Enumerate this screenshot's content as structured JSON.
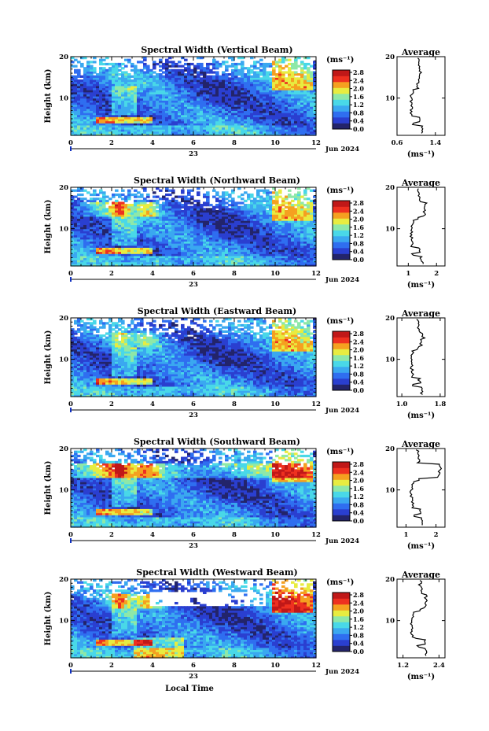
{
  "chart_data": [
    {
      "type": "heatmap",
      "title": "Spectral Width (Vertical Beam)",
      "ylabel": "Height (km)",
      "xticks": [
        "0",
        "2",
        "4",
        "6",
        "8",
        "10",
        "12"
      ],
      "yticks": [
        "10",
        "20"
      ],
      "ylim": [
        1,
        20
      ],
      "xlim": [
        0,
        12
      ],
      "date_day": "23",
      "date_label": "Jun 2024",
      "colorbar": {
        "unit": "(ms⁻¹)",
        "ticks": [
          "2.8",
          "2.4",
          "2.0",
          "1.6",
          "1.2",
          "0.8",
          "0.4",
          "0.0"
        ],
        "range": [
          0,
          2.8
        ]
      },
      "profile": {
        "title": "Average",
        "xticks": [
          "0.6",
          "1.4"
        ],
        "yticks": [
          "10",
          "20"
        ],
        "xunit": "(ms⁻¹)",
        "xlim": [
          0.6,
          1.6
        ]
      }
    },
    {
      "type": "heatmap",
      "title": "Spectral Width (Northward Beam)",
      "ylabel": "Height (km)",
      "xticks": [
        "0",
        "2",
        "4",
        "6",
        "8",
        "10",
        "12"
      ],
      "yticks": [
        "10",
        "20"
      ],
      "ylim": [
        1,
        20
      ],
      "xlim": [
        0,
        12
      ],
      "date_day": "23",
      "date_label": "Jun 2024",
      "colorbar": {
        "unit": "(ms⁻¹)",
        "ticks": [
          "2.8",
          "2.4",
          "2.0",
          "1.6",
          "1.2",
          "0.8",
          "0.4",
          "0.0"
        ],
        "range": [
          0,
          2.8
        ]
      },
      "profile": {
        "title": "Average",
        "xticks": [
          "1",
          "2"
        ],
        "yticks": [
          "10",
          "20"
        ],
        "xunit": "(ms⁻¹)",
        "xlim": [
          0.6,
          2.3
        ]
      }
    },
    {
      "type": "heatmap",
      "title": "Spectral Width (Eastward Beam)",
      "ylabel": "Height (km)",
      "xticks": [
        "0",
        "2",
        "4",
        "6",
        "8",
        "10",
        "12"
      ],
      "yticks": [
        "10",
        "20"
      ],
      "ylim": [
        1,
        20
      ],
      "xlim": [
        0,
        12
      ],
      "date_day": "23",
      "date_label": "Jun 2024",
      "colorbar": {
        "unit": "(ms⁻¹)",
        "ticks": [
          "2.8",
          "2.4",
          "2.0",
          "1.6",
          "1.2",
          "0.8",
          "0.4",
          "0.0"
        ],
        "range": [
          0,
          2.8
        ]
      },
      "profile": {
        "title": "Average",
        "xticks": [
          "1.0",
          "1.8"
        ],
        "yticks": [
          "10",
          "20"
        ],
        "xunit": "(ms⁻¹)",
        "xlim": [
          0.9,
          1.9
        ]
      }
    },
    {
      "type": "heatmap",
      "title": "Spectral Width (Southward Beam)",
      "ylabel": "Height (km)",
      "xticks": [
        "0",
        "2",
        "4",
        "6",
        "8",
        "10",
        "12"
      ],
      "yticks": [
        "10",
        "20"
      ],
      "ylim": [
        1,
        20
      ],
      "xlim": [
        0,
        12
      ],
      "date_day": "23",
      "date_label": "Jun 2024",
      "colorbar": {
        "unit": "(ms⁻¹)",
        "ticks": [
          "2.8",
          "2.4",
          "2.0",
          "1.6",
          "1.2",
          "0.8",
          "0.4",
          "0.0"
        ],
        "range": [
          0,
          2.8
        ]
      },
      "profile": {
        "title": "Average",
        "xticks": [
          "1",
          "2"
        ],
        "yticks": [
          "10",
          "20"
        ],
        "xunit": "(ms⁻¹)",
        "xlim": [
          0.7,
          2.3
        ]
      }
    },
    {
      "type": "heatmap",
      "title": "Spectral Width (Westward Beam)",
      "ylabel": "Height (km)",
      "xticks": [
        "0",
        "2",
        "4",
        "6",
        "8",
        "10",
        "12"
      ],
      "yticks": [
        "10",
        "20"
      ],
      "ylim": [
        1,
        20
      ],
      "xlim": [
        0,
        12
      ],
      "date_day": "23",
      "date_label": "Jun 2024",
      "xlabel": "Local Time",
      "colorbar": {
        "unit": "(ms⁻¹)",
        "ticks": [
          "2.8",
          "2.4",
          "2.0",
          "1.6",
          "1.2",
          "0.8",
          "0.4",
          "0.0"
        ],
        "range": [
          0,
          2.8
        ]
      },
      "profile": {
        "title": "Average",
        "xticks": [
          "1.2",
          "2.4"
        ],
        "yticks": [
          "10",
          "20"
        ],
        "xunit": "(ms⁻¹)",
        "xlim": [
          1.0,
          2.6
        ]
      }
    }
  ],
  "colors": {
    "scale": [
      "#23246b",
      "#2a3fd0",
      "#2f6ef0",
      "#3aa8f0",
      "#49d8e8",
      "#8ee8a8",
      "#e8ec40",
      "#f5a020",
      "#ee3020",
      "#c01818"
    ],
    "axis": "#000000",
    "marker": "#1030c0"
  }
}
